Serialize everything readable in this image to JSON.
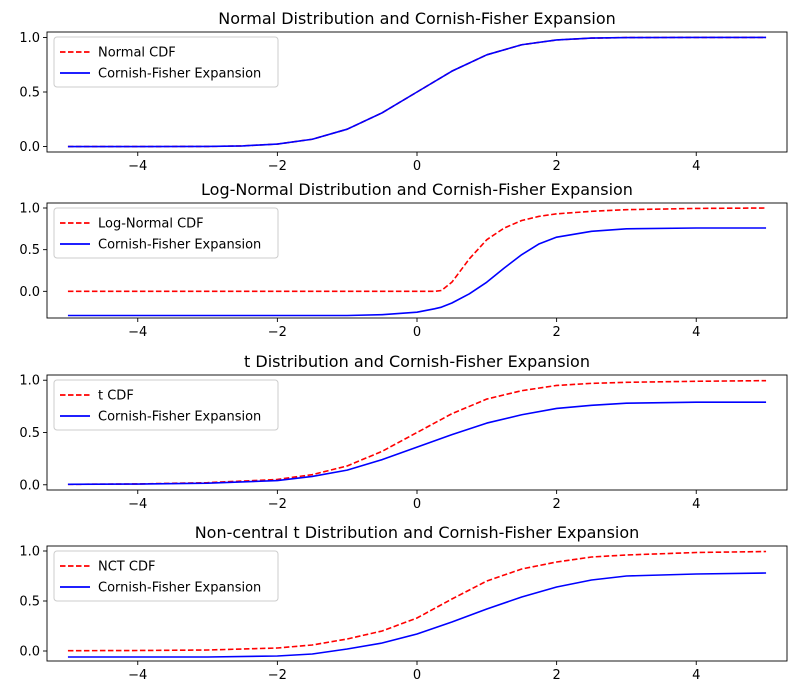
{
  "chart_data": [
    {
      "type": "line",
      "title": "Normal Distribution and Cornish-Fisher Expansion",
      "xlim": [
        -5.3,
        5.3
      ],
      "ylim": [
        -0.05,
        1.05
      ],
      "xticks": [
        -4,
        -2,
        0,
        2,
        4
      ],
      "xtick_labels": [
        "−4",
        "−2",
        "0",
        "2",
        "4"
      ],
      "yticks": [
        0.0,
        0.5,
        1.0
      ],
      "ytick_labels": [
        "0.0",
        "0.5",
        "1.0"
      ],
      "legend": "top-left",
      "grid": false,
      "x": [
        -5,
        -4,
        -3,
        -2.5,
        -2,
        -1.5,
        -1,
        -0.5,
        0,
        0.5,
        1,
        1.5,
        2,
        2.5,
        3,
        4,
        5
      ],
      "series": [
        {
          "name": "Normal CDF",
          "color": "#ff0000",
          "dash": "dashed",
          "values": [
            0.0,
            0.0,
            0.001,
            0.006,
            0.023,
            0.067,
            0.159,
            0.309,
            0.5,
            0.691,
            0.841,
            0.933,
            0.977,
            0.994,
            0.999,
            1.0,
            1.0
          ]
        },
        {
          "name": "Cornish-Fisher Expansion",
          "color": "#0000ff",
          "dash": "solid",
          "values": [
            0.0,
            0.0,
            0.001,
            0.006,
            0.023,
            0.067,
            0.159,
            0.309,
            0.5,
            0.691,
            0.841,
            0.933,
            0.977,
            0.994,
            0.999,
            1.0,
            1.0
          ]
        }
      ]
    },
    {
      "type": "line",
      "title": "Log-Normal Distribution and Cornish-Fisher Expansion",
      "xlim": [
        -5.3,
        5.3
      ],
      "ylim": [
        -0.32,
        1.06
      ],
      "xticks": [
        -4,
        -2,
        0,
        2,
        4
      ],
      "xtick_labels": [
        "−4",
        "−2",
        "0",
        "2",
        "4"
      ],
      "yticks": [
        0.0,
        0.5,
        1.0
      ],
      "ytick_labels": [
        "0.0",
        "0.5",
        "1.0"
      ],
      "legend": "top-left",
      "grid": false,
      "x": [
        -5,
        -4,
        -3,
        -2,
        -1,
        -0.5,
        0,
        0.25,
        0.35,
        0.5,
        0.75,
        1,
        1.25,
        1.5,
        1.75,
        2,
        2.5,
        3,
        4,
        5
      ],
      "series": [
        {
          "name": "Log-Normal CDF",
          "color": "#ff0000",
          "dash": "dashed",
          "values": [
            0.0,
            0.0,
            0.0,
            0.0,
            0.0,
            0.0,
            0.0,
            0.0,
            0.01,
            0.11,
            0.39,
            0.62,
            0.76,
            0.85,
            0.9,
            0.93,
            0.96,
            0.98,
            0.995,
            1.0
          ]
        },
        {
          "name": "Cornish-Fisher Expansion",
          "color": "#0000ff",
          "dash": "solid",
          "values": [
            -0.29,
            -0.29,
            -0.29,
            -0.29,
            -0.29,
            -0.28,
            -0.25,
            -0.21,
            -0.19,
            -0.14,
            -0.03,
            0.11,
            0.28,
            0.44,
            0.57,
            0.65,
            0.72,
            0.75,
            0.76,
            0.76
          ]
        }
      ]
    },
    {
      "type": "line",
      "title": "t Distribution and Cornish-Fisher Expansion",
      "xlim": [
        -5.3,
        5.3
      ],
      "ylim": [
        -0.05,
        1.05
      ],
      "xticks": [
        -4,
        -2,
        0,
        2,
        4
      ],
      "xtick_labels": [
        "−4",
        "−2",
        "0",
        "2",
        "4"
      ],
      "yticks": [
        0.0,
        0.5,
        1.0
      ],
      "ytick_labels": [
        "0.0",
        "0.5",
        "1.0"
      ],
      "legend": "top-left",
      "grid": false,
      "x": [
        -5,
        -4,
        -3,
        -2,
        -1.5,
        -1,
        -0.5,
        0,
        0.5,
        1,
        1.5,
        2,
        2.5,
        3,
        4,
        5
      ],
      "series": [
        {
          "name": "t CDF",
          "color": "#ff0000",
          "dash": "dashed",
          "values": [
            0.004,
            0.008,
            0.02,
            0.051,
            0.097,
            0.18,
            0.32,
            0.5,
            0.68,
            0.82,
            0.9,
            0.95,
            0.97,
            0.98,
            0.99,
            0.996
          ]
        },
        {
          "name": "Cornish-Fisher Expansion",
          "color": "#0000ff",
          "dash": "solid",
          "values": [
            0.004,
            0.007,
            0.015,
            0.04,
            0.08,
            0.14,
            0.24,
            0.36,
            0.48,
            0.59,
            0.67,
            0.73,
            0.76,
            0.78,
            0.79,
            0.79
          ]
        }
      ]
    },
    {
      "type": "line",
      "title": "Non-central t Distribution and Cornish-Fisher Expansion",
      "xlim": [
        -5.3,
        5.3
      ],
      "ylim": [
        -0.1,
        1.05
      ],
      "xticks": [
        -4,
        -2,
        0,
        2,
        4
      ],
      "xtick_labels": [
        "−4",
        "−2",
        "0",
        "2",
        "4"
      ],
      "yticks": [
        0.0,
        0.5,
        1.0
      ],
      "ytick_labels": [
        "0.0",
        "0.5",
        "1.0"
      ],
      "legend": "top-left",
      "grid": false,
      "x": [
        -5,
        -4,
        -3,
        -2,
        -1.5,
        -1,
        -0.5,
        0,
        0.5,
        1,
        1.5,
        2,
        2.5,
        3,
        4,
        5
      ],
      "series": [
        {
          "name": "NCT CDF",
          "color": "#ff0000",
          "dash": "dashed",
          "values": [
            0.003,
            0.005,
            0.01,
            0.03,
            0.06,
            0.12,
            0.2,
            0.33,
            0.52,
            0.7,
            0.82,
            0.89,
            0.94,
            0.96,
            0.985,
            0.995
          ]
        },
        {
          "name": "Cornish-Fisher Expansion",
          "color": "#0000ff",
          "dash": "solid",
          "values": [
            -0.06,
            -0.06,
            -0.06,
            -0.05,
            -0.03,
            0.02,
            0.08,
            0.17,
            0.29,
            0.42,
            0.54,
            0.64,
            0.71,
            0.75,
            0.77,
            0.78
          ]
        }
      ]
    }
  ]
}
